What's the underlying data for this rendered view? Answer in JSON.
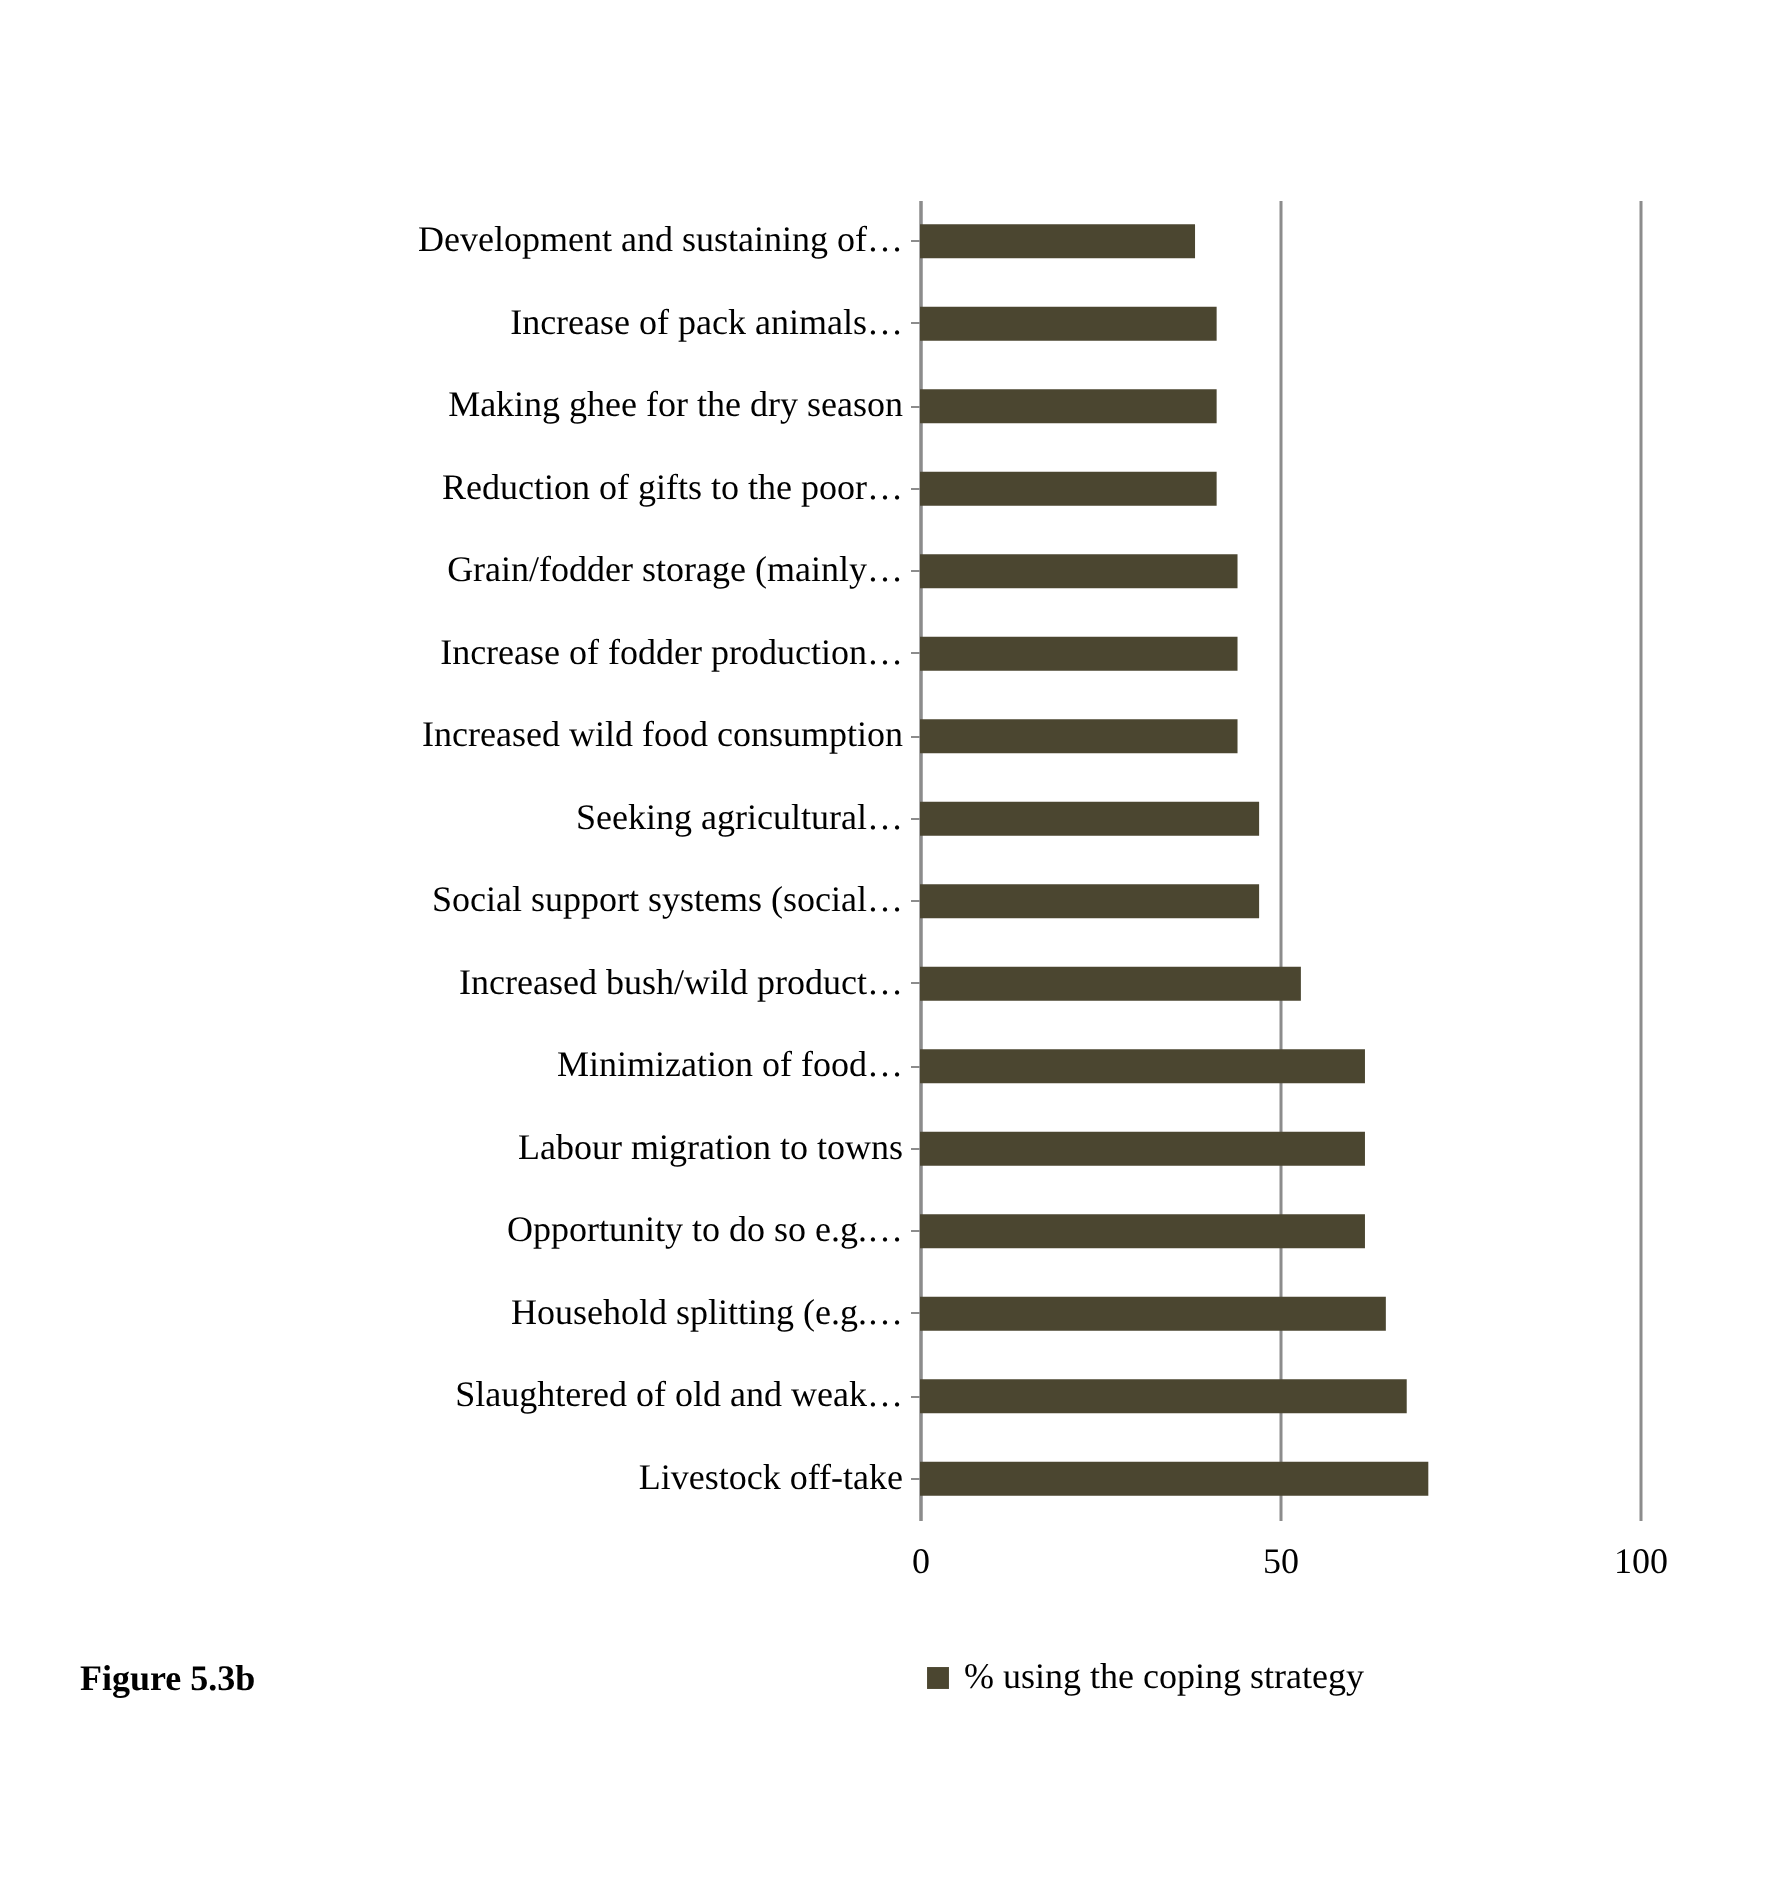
{
  "chart_data": {
    "type": "bar",
    "orientation": "horizontal",
    "categories": [
      "Development and sustaining of…",
      "Increase of pack animals…",
      "Making ghee for the dry season",
      "Reduction of gifts to the poor…",
      "Grain/fodder storage (mainly…",
      "Increase of fodder production…",
      "Increased wild food consumption",
      "Seeking agricultural…",
      "Social support systems (social…",
      "Increased bush/wild product…",
      "Minimization of food…",
      "Labour migration to towns",
      "Opportunity to do so e.g.…",
      "Household splitting (e.g.…",
      "Slaughtered of old and weak…",
      "Livestock off-take"
    ],
    "series": [
      {
        "name": "% using the coping strategy",
        "color": "#4b4630",
        "values": [
          38.2,
          41.2,
          41.2,
          41.2,
          44.1,
          44.1,
          44.1,
          47.1,
          47.1,
          52.9,
          61.8,
          61.8,
          61.8,
          64.7,
          67.6,
          70.6
        ]
      }
    ],
    "xlim": [
      0,
      100
    ],
    "xticks": [
      0,
      50,
      100
    ],
    "grid": "x",
    "legend": "bottom",
    "annotations": [
      "Figure 5.3b"
    ]
  }
}
